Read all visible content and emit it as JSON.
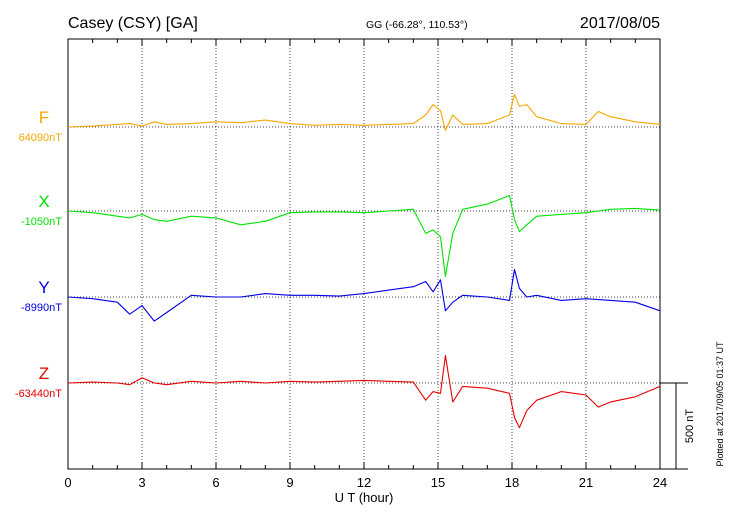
{
  "header": {
    "station": "Casey (CSY)  [GA]",
    "coords": "GG (-66.28°, 110.53°)",
    "date": "2017/08/05"
  },
  "footer": {
    "plotted": "Plotted at 2017/09/05 01:37  UT",
    "scale_label": "500 nT"
  },
  "chart_data": {
    "type": "line",
    "xlabel": "U T (hour)",
    "xlim": [
      0,
      24
    ],
    "xticks": [
      "0",
      "3",
      "6",
      "9",
      "12",
      "15",
      "18",
      "21",
      "24"
    ],
    "grid": true,
    "scale_bar_nT": 500,
    "x": [
      0,
      1,
      2,
      2.5,
      3,
      3.5,
      4,
      5,
      6,
      7,
      8,
      9,
      10,
      11,
      12,
      13,
      14,
      14.5,
      14.8,
      15.1,
      15.3,
      15.6,
      16,
      17,
      17.9,
      18.1,
      18.3,
      18.6,
      19,
      20,
      21,
      21.5,
      22,
      23,
      24
    ],
    "series": [
      {
        "name": "F",
        "baseline": "64090nT",
        "color": "#f5a800",
        "values": [
          0,
          5,
          15,
          20,
          5,
          30,
          15,
          20,
          30,
          25,
          40,
          20,
          10,
          15,
          10,
          15,
          20,
          70,
          130,
          95,
          -20,
          70,
          15,
          20,
          70,
          190,
          120,
          130,
          60,
          20,
          15,
          90,
          60,
          30,
          15
        ]
      },
      {
        "name": "X",
        "baseline": "-1050nT",
        "color": "#00e400",
        "values": [
          0,
          -10,
          -30,
          -40,
          -20,
          -50,
          -60,
          -30,
          -40,
          -80,
          -60,
          -10,
          -5,
          -5,
          -10,
          0,
          10,
          -130,
          -110,
          -150,
          -380,
          -130,
          10,
          40,
          90,
          -50,
          -120,
          -80,
          -30,
          -20,
          -10,
          0,
          10,
          15,
          5
        ]
      },
      {
        "name": "Y",
        "baseline": "-8990nT",
        "color": "#0000e6",
        "values": [
          0,
          -10,
          -30,
          -100,
          -50,
          -140,
          -90,
          10,
          0,
          0,
          20,
          10,
          10,
          5,
          20,
          40,
          60,
          90,
          30,
          100,
          -80,
          -30,
          10,
          0,
          -20,
          160,
          50,
          0,
          10,
          -20,
          -10,
          -15,
          -20,
          -30,
          -80
        ]
      },
      {
        "name": "Z",
        "baseline": "-63440nT",
        "color": "#e60000",
        "values": [
          0,
          5,
          0,
          -10,
          30,
          0,
          -10,
          10,
          0,
          10,
          0,
          10,
          5,
          10,
          15,
          10,
          5,
          -100,
          -50,
          -60,
          160,
          -110,
          -20,
          -30,
          -60,
          -200,
          -260,
          -160,
          -100,
          -50,
          -70,
          -140,
          -110,
          -80,
          -20
        ]
      }
    ]
  }
}
